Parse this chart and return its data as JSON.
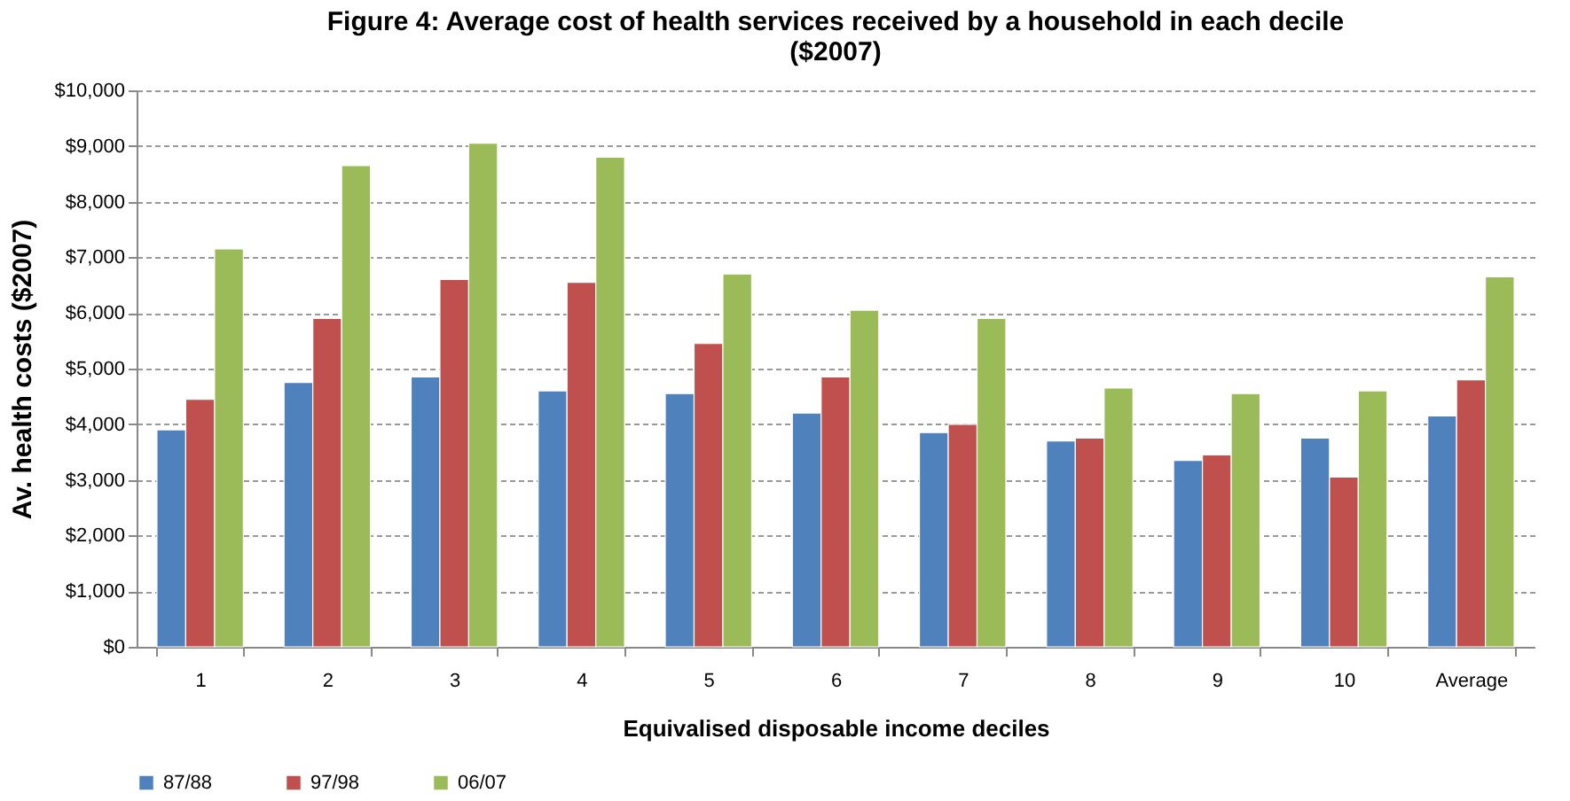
{
  "chart_data": {
    "type": "bar",
    "title": "Figure 4: Average cost of health services received by a household in each decile ($2007)",
    "xlabel": "Equivalised disposable income deciles",
    "ylabel": "Av. health costs ($2007)",
    "categories": [
      "1",
      "2",
      "3",
      "4",
      "5",
      "6",
      "7",
      "8",
      "9",
      "10",
      "Average"
    ],
    "series": [
      {
        "name": "87/88",
        "color": "#4f81bd",
        "values": [
          3900,
          4750,
          4850,
          4600,
          4550,
          4200,
          3850,
          3700,
          3350,
          3750,
          4150
        ]
      },
      {
        "name": "97/98",
        "color": "#c0504d",
        "values": [
          4450,
          5900,
          6600,
          6550,
          5450,
          4850,
          4000,
          3750,
          3450,
          3050,
          4800
        ]
      },
      {
        "name": "06/07",
        "color": "#9bbb59",
        "values": [
          7150,
          8650,
          9050,
          8800,
          6700,
          6050,
          5900,
          4650,
          4550,
          4600,
          6650
        ]
      }
    ],
    "ylim": [
      0,
      10000
    ],
    "yticks": [
      {
        "value": 0,
        "label": "$0"
      },
      {
        "value": 1000,
        "label": "$1,000"
      },
      {
        "value": 2000,
        "label": "$2,000"
      },
      {
        "value": 3000,
        "label": "$3,000"
      },
      {
        "value": 4000,
        "label": "$4,000"
      },
      {
        "value": 5000,
        "label": "$5,000"
      },
      {
        "value": 6000,
        "label": "$6,000"
      },
      {
        "value": 7000,
        "label": "$7,000"
      },
      {
        "value": 8000,
        "label": "$8,000"
      },
      {
        "value": 9000,
        "label": "$9,000"
      },
      {
        "value": 10000,
        "label": "$10,000"
      }
    ],
    "grid": "y",
    "legend": "bottom"
  }
}
